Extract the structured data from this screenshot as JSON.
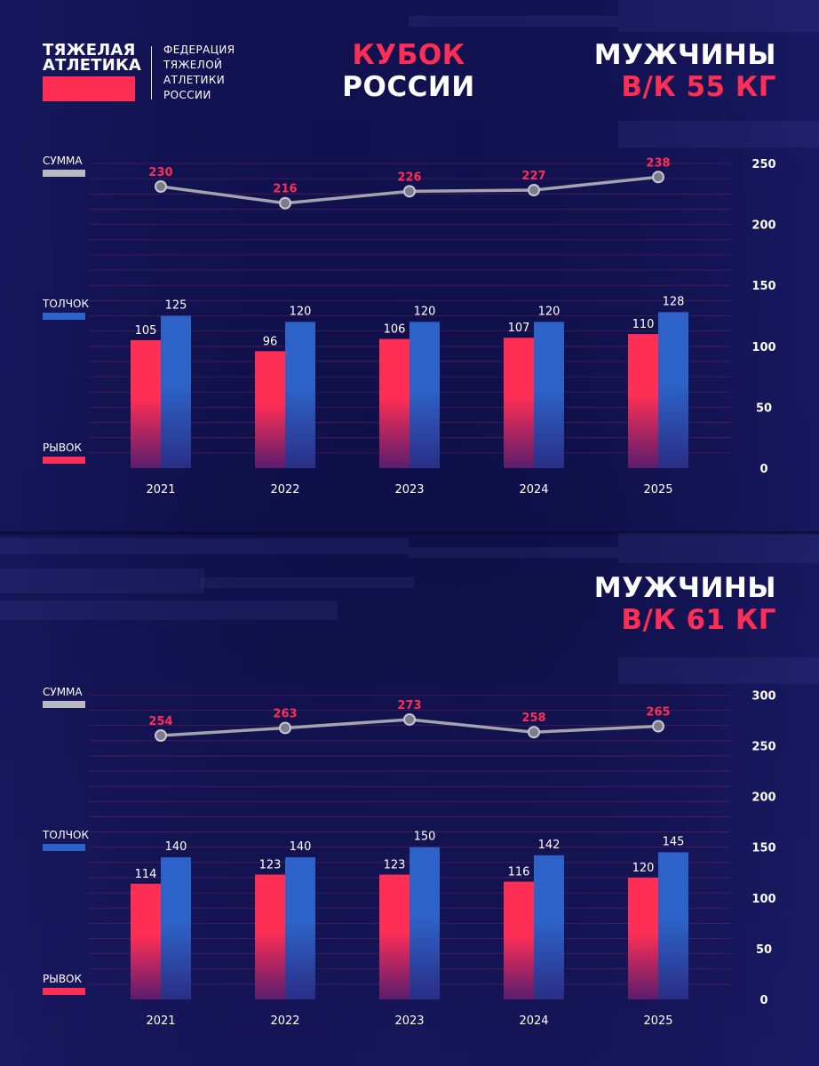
{
  "logo": {
    "title": "ТЯЖЕЛАЯ\nАТЛЕТИКА",
    "subtitle": "ФЕДЕРАЦИЯ\nТЯЖЕЛОЙ\nАТЛЕТИКИ\nРОССИИ"
  },
  "event": {
    "line1": "КУБОК",
    "line2": "РОССИИ"
  },
  "colors": {
    "snatch": "#ff2e55",
    "clean_jerk": "#2d63c8",
    "total": "#9a9aa6",
    "background": "#0e0f4a"
  },
  "chart_data": [
    {
      "type": "bar",
      "category_line1": "МУЖЧИНЫ",
      "category_line2": "В/К 55 КГ",
      "categories": [
        "2021",
        "2022",
        "2023",
        "2024",
        "2025"
      ],
      "series": [
        {
          "name": "РЫВОК",
          "values": [
            105,
            96,
            106,
            107,
            110
          ]
        },
        {
          "name": "ТОЛЧОК",
          "values": [
            125,
            120,
            120,
            120,
            128
          ]
        }
      ],
      "total": {
        "name": "СУММА",
        "values": [
          230,
          216,
          226,
          227,
          238
        ]
      },
      "ylim": [
        0,
        250
      ],
      "yticks": [
        0,
        50,
        100,
        150,
        200,
        250
      ]
    },
    {
      "type": "bar",
      "category_line1": "МУЖЧИНЫ",
      "category_line2": "В/К 61 КГ",
      "categories": [
        "2021",
        "2022",
        "2023",
        "2024",
        "2025"
      ],
      "series": [
        {
          "name": "РЫВОК",
          "values": [
            114,
            123,
            123,
            116,
            120
          ]
        },
        {
          "name": "ТОЛЧОК",
          "values": [
            140,
            140,
            150,
            142,
            145
          ]
        }
      ],
      "total": {
        "name": "СУММА",
        "values": [
          254,
          263,
          273,
          258,
          265
        ]
      },
      "ylim": [
        0,
        300
      ],
      "yticks": [
        0,
        50,
        100,
        150,
        200,
        250,
        300
      ]
    }
  ]
}
